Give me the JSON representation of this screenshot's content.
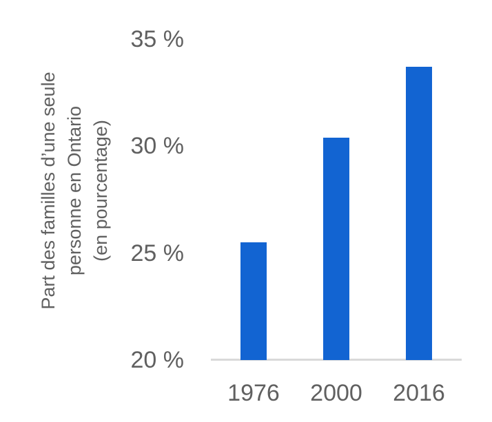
{
  "chart_data": {
    "type": "bar",
    "title": "",
    "categories": [
      "1976",
      "2000",
      "2016"
    ],
    "values": [
      25.5,
      30.4,
      33.7
    ],
    "xlabel": "",
    "ylabel": "Part des familles d’une seule personne en Ontario (en pourcentage)",
    "ylabel_lines": [
      "Part des familles d’une seule",
      "personne en Ontario",
      "(en pourcentage)"
    ],
    "yticks": [
      {
        "value": 35,
        "label": "35 %"
      },
      {
        "value": 30,
        "label": "30 %"
      },
      {
        "value": 25,
        "label": "25 %"
      },
      {
        "value": 20,
        "label": "20 %"
      }
    ],
    "ylim": [
      20,
      35
    ],
    "grid": false,
    "legend_position": "none",
    "colors": {
      "bar": "#1264d2",
      "axis_line": "#d9d9d9",
      "text": "#606060",
      "background": "#ffffff"
    }
  }
}
